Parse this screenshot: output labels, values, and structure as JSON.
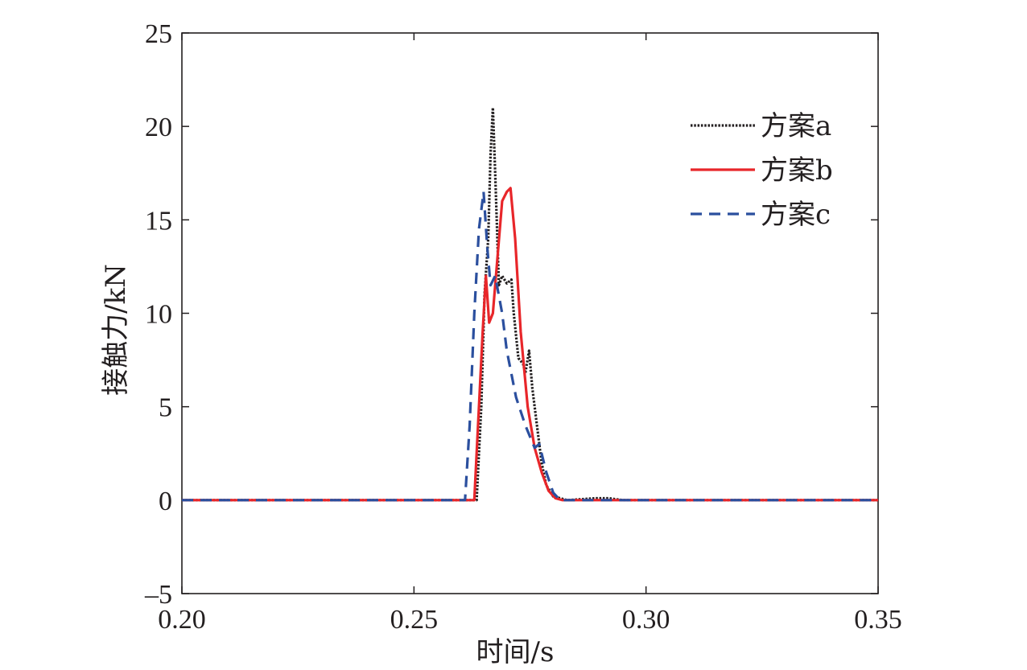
{
  "chart_data": {
    "type": "line",
    "title": "",
    "xlabel": "时间/s",
    "ylabel": "接触力/kN",
    "xlim": [
      0.2,
      0.35
    ],
    "ylim": [
      -5,
      25
    ],
    "xticks": [
      "0.20",
      "0.25",
      "0.30",
      "0.35"
    ],
    "yticks": [
      "–5",
      "0",
      "5",
      "10",
      "15",
      "20",
      "25"
    ],
    "grid": false,
    "legend_position": "top-right",
    "series": [
      {
        "name": "方案a",
        "color": "#231f20",
        "style": "dotted",
        "points": [
          [
            0.2,
            0
          ],
          [
            0.2635,
            0
          ],
          [
            0.2645,
            5.0
          ],
          [
            0.2652,
            11.0
          ],
          [
            0.266,
            14.0
          ],
          [
            0.2665,
            18.5
          ],
          [
            0.267,
            21.0
          ],
          [
            0.2675,
            17.5
          ],
          [
            0.2683,
            11.5
          ],
          [
            0.269,
            12.0
          ],
          [
            0.27,
            11.6
          ],
          [
            0.271,
            11.8
          ],
          [
            0.2715,
            10.0
          ],
          [
            0.2725,
            7.6
          ],
          [
            0.2735,
            7.3
          ],
          [
            0.274,
            6.8
          ],
          [
            0.2748,
            8.0
          ],
          [
            0.2755,
            6.0
          ],
          [
            0.2765,
            4.0
          ],
          [
            0.2775,
            2.0
          ],
          [
            0.2785,
            0.8
          ],
          [
            0.28,
            0.2
          ],
          [
            0.283,
            0
          ],
          [
            0.289,
            0.1
          ],
          [
            0.292,
            0.1
          ],
          [
            0.295,
            0
          ],
          [
            0.35,
            0
          ]
        ]
      },
      {
        "name": "方案b",
        "color": "#e8262a",
        "style": "solid",
        "points": [
          [
            0.2,
            0
          ],
          [
            0.263,
            0
          ],
          [
            0.264,
            5.0
          ],
          [
            0.2648,
            9.0
          ],
          [
            0.2655,
            12.0
          ],
          [
            0.2662,
            9.5
          ],
          [
            0.267,
            10.0
          ],
          [
            0.268,
            13.0
          ],
          [
            0.269,
            16.0
          ],
          [
            0.27,
            16.5
          ],
          [
            0.2708,
            16.7
          ],
          [
            0.2718,
            14.0
          ],
          [
            0.273,
            9.0
          ],
          [
            0.2745,
            5.0
          ],
          [
            0.276,
            2.8
          ],
          [
            0.2775,
            1.5
          ],
          [
            0.279,
            0.5
          ],
          [
            0.2805,
            0.1
          ],
          [
            0.282,
            0
          ],
          [
            0.35,
            0
          ]
        ]
      },
      {
        "name": "方案c",
        "color": "#2b4f9e",
        "style": "dashed",
        "points": [
          [
            0.2,
            0
          ],
          [
            0.261,
            0
          ],
          [
            0.262,
            4.0
          ],
          [
            0.263,
            10.0
          ],
          [
            0.264,
            14.5
          ],
          [
            0.265,
            16.5
          ],
          [
            0.2658,
            13.5
          ],
          [
            0.2665,
            11.5
          ],
          [
            0.2675,
            12.0
          ],
          [
            0.269,
            10.0
          ],
          [
            0.27,
            8.0
          ],
          [
            0.272,
            5.5
          ],
          [
            0.274,
            4.0
          ],
          [
            0.276,
            2.8
          ],
          [
            0.277,
            3.0
          ],
          [
            0.2785,
            1.5
          ],
          [
            0.28,
            0.4
          ],
          [
            0.2815,
            0
          ],
          [
            0.35,
            0
          ]
        ]
      }
    ]
  }
}
